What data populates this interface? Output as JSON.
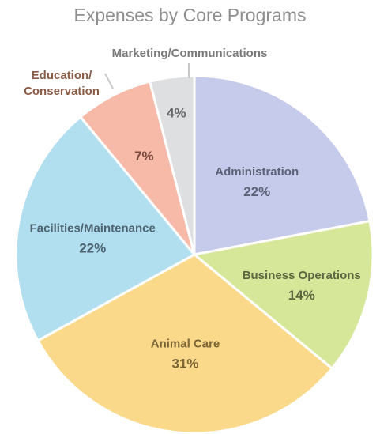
{
  "chart_data": {
    "type": "pie",
    "title": "Expenses by Core Programs",
    "slices": [
      {
        "label": "Administration",
        "value": 22,
        "pct_label": "22%",
        "color": "#c6cbec",
        "text_color": "#5b6378"
      },
      {
        "label": "Business Operations",
        "value": 14,
        "pct_label": "14%",
        "color": "#d6e79a",
        "text_color": "#5d6640"
      },
      {
        "label": "Animal Care",
        "value": 31,
        "pct_label": "31%",
        "color": "#fbd98a",
        "text_color": "#7a6436"
      },
      {
        "label": "Facilities/Maintenance",
        "value": 22,
        "pct_label": "22%",
        "color": "#b2dff0",
        "text_color": "#4d6470"
      },
      {
        "label": "Education/ Conservation",
        "value": 7,
        "pct_label": "7%",
        "color": "#f7b9a8",
        "text_color": "#7a4a3c",
        "outer": true,
        "label_lines": [
          "Education/",
          "Conservation"
        ],
        "label_color": "#8a5a44"
      },
      {
        "label": "Marketing/Communications",
        "value": 4,
        "pct_label": "4%",
        "color": "#dedfe1",
        "text_color": "#666666",
        "outer": true,
        "label_lines": [
          "Marketing/Communications"
        ],
        "label_color": "#7a7a7a"
      }
    ]
  }
}
